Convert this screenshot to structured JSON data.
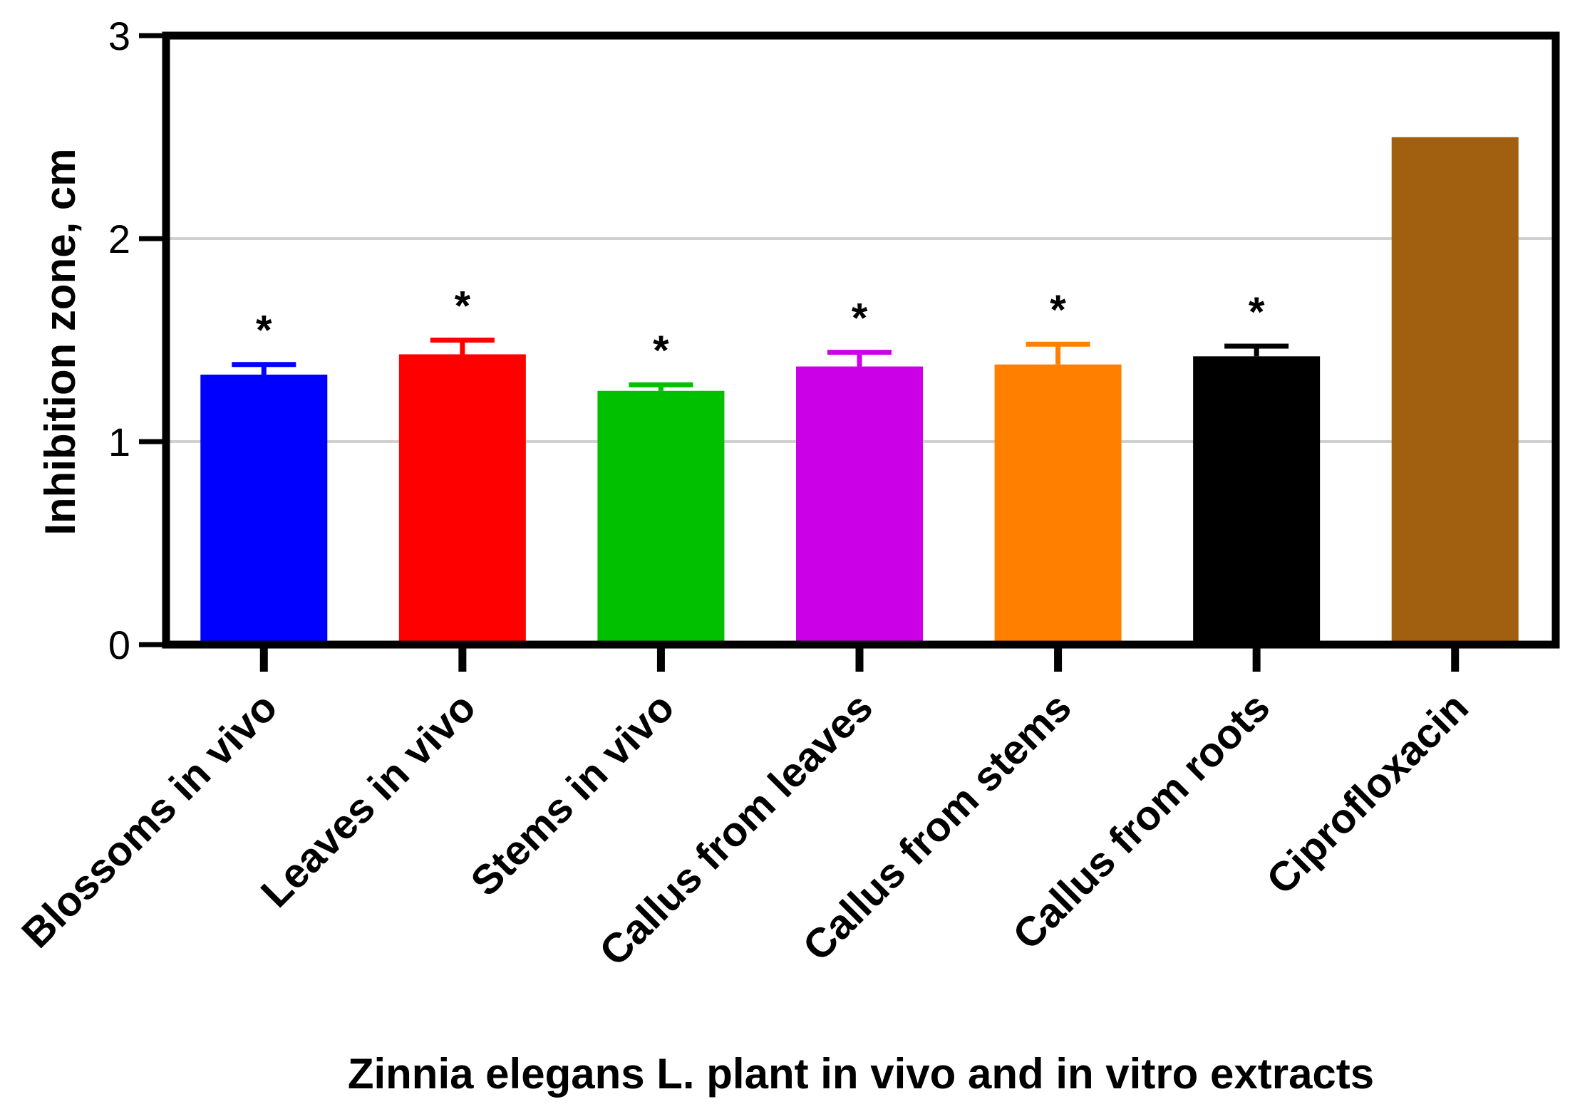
{
  "chart_data": {
    "type": "bar",
    "title": "",
    "xlabel": "Zinnia elegans L. plant in vivo and in vitro extracts",
    "ylabel": "Inhibition zone, cm",
    "ylim": [
      0,
      3
    ],
    "yticks": [
      "0",
      "1",
      "2",
      "3"
    ],
    "grid": true,
    "categories": [
      "Blossoms in vivo",
      "Leaves in vivo",
      "Stems in vivo",
      "Callus from leaves",
      "Callus from stems",
      "Callus from roots",
      "Ciprofloxacin"
    ],
    "values": [
      1.33,
      1.43,
      1.25,
      1.37,
      1.38,
      1.42,
      2.5
    ],
    "errors": [
      0.05,
      0.07,
      0.03,
      0.07,
      0.1,
      0.05,
      0
    ],
    "significance": [
      "*",
      "*",
      "*",
      "*",
      "*",
      "*",
      ""
    ],
    "colors": [
      "#0000ff",
      "#ff0000",
      "#00c000",
      "#cc00e6",
      "#ff8000",
      "#000000",
      "#a06010"
    ]
  }
}
